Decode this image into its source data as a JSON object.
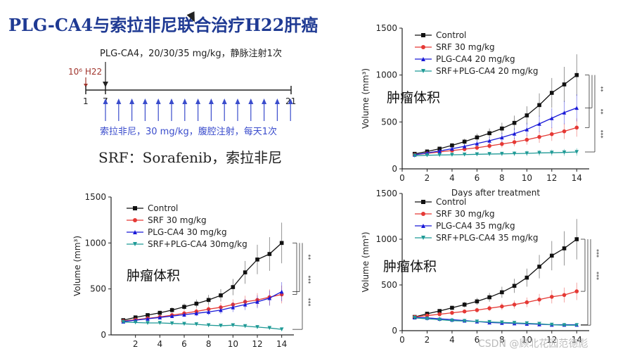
{
  "slide": {
    "title": "PLG-CA4与索拉非尼联合治疗H22肝癌",
    "protocol": {
      "plg_label": "PLG-CA4，20/30/35 mg/kg，静脉注射1次",
      "inoculation_label": "10⁶ H22",
      "day_start": "1",
      "day_treat": "7",
      "day_end": "21",
      "srf_label": "索拉非尼，30 mg/kg，腹腔注射，每天1次"
    },
    "srf_note": "SRF：Sorafenib，索拉非尼",
    "watermark": "CSDN @顾北花园范德彪"
  },
  "colors": {
    "control": "#111111",
    "srf": "#e53935",
    "plg": "#1a1ad8",
    "combo": "#1f9a96",
    "title": "#1f3a93",
    "arrow_red": "#a0342c",
    "arrow_blue": "#3a4ccc"
  },
  "chart_data": [
    {
      "type": "line",
      "title": "肿瘤体积",
      "xlabel": "Days after treatment",
      "ylabel": "Volume (mm³)",
      "xlim": [
        0,
        15
      ],
      "ylim": [
        0,
        1500
      ],
      "xticks": [
        0,
        2,
        4,
        6,
        8,
        10,
        12,
        14
      ],
      "yticks": [
        0,
        500,
        1000,
        1500
      ],
      "x": [
        1,
        2,
        3,
        4,
        5,
        6,
        7,
        8,
        9,
        10,
        11,
        12,
        13,
        14
      ],
      "series": [
        {
          "name": "Control",
          "color_key": "control",
          "marker": "square",
          "values": [
            160,
            185,
            215,
            250,
            290,
            335,
            380,
            430,
            490,
            570,
            680,
            810,
            900,
            1000
          ]
        },
        {
          "name": "SRF 30 mg/kg",
          "color_key": "srf",
          "marker": "circle",
          "values": [
            150,
            165,
            180,
            195,
            210,
            225,
            245,
            265,
            285,
            310,
            340,
            370,
            400,
            440
          ]
        },
        {
          "name": "PLG-CA4 20 mg/kg",
          "color_key": "plg",
          "marker": "triangle-up",
          "values": [
            150,
            170,
            190,
            215,
            240,
            270,
            300,
            335,
            375,
            420,
            480,
            540,
            600,
            650
          ]
        },
        {
          "name": "SRF+PLG-CA4 20 mg/kg",
          "color_key": "combo",
          "marker": "triangle-down",
          "values": [
            140,
            145,
            148,
            150,
            152,
            155,
            158,
            160,
            162,
            165,
            170,
            172,
            175,
            180
          ]
        }
      ],
      "significance": [
        "**",
        "**",
        "***"
      ]
    },
    {
      "type": "line",
      "title": "肿瘤体积",
      "xlabel": "",
      "ylabel": "Volume (mm³)",
      "xlim": [
        0,
        15
      ],
      "ylim": [
        0,
        1500
      ],
      "xticks": [
        2,
        4,
        6,
        8,
        10,
        12,
        14
      ],
      "yticks": [
        0,
        500,
        1000,
        1500
      ],
      "x": [
        1,
        2,
        3,
        4,
        5,
        6,
        7,
        8,
        9,
        10,
        11,
        12,
        13,
        14
      ],
      "series": [
        {
          "name": "Control",
          "color_key": "control",
          "marker": "square",
          "values": [
            160,
            190,
            215,
            240,
            270,
            305,
            340,
            380,
            430,
            520,
            680,
            820,
            880,
            1000
          ]
        },
        {
          "name": "SRF 30 mg/kg",
          "color_key": "srf",
          "marker": "circle",
          "values": [
            150,
            165,
            180,
            195,
            215,
            235,
            255,
            280,
            300,
            330,
            360,
            380,
            410,
            440
          ]
        },
        {
          "name": "PLG-CA4 30 mg/kg",
          "color_key": "plg",
          "marker": "triangle-up",
          "values": [
            145,
            160,
            175,
            190,
            205,
            220,
            235,
            250,
            270,
            300,
            330,
            360,
            400,
            470
          ]
        },
        {
          "name": "SRF+PLG-CA4 30mg/kg",
          "color_key": "combo",
          "marker": "triangle-down",
          "values": [
            140,
            135,
            130,
            130,
            125,
            120,
            115,
            105,
            100,
            105,
            95,
            85,
            75,
            60
          ]
        }
      ],
      "significance": [
        "**",
        "***",
        "***"
      ]
    },
    {
      "type": "line",
      "title": "肿瘤体积",
      "xlabel": "",
      "ylabel": "Volume (mm³)",
      "xlim": [
        0,
        15
      ],
      "ylim": [
        0,
        1500
      ],
      "xticks": [
        0,
        2,
        4,
        6,
        8,
        10,
        12,
        14
      ],
      "yticks": [
        0,
        500,
        1000,
        1500
      ],
      "x": [
        1,
        2,
        3,
        4,
        5,
        6,
        7,
        8,
        9,
        10,
        11,
        12,
        13,
        14
      ],
      "series": [
        {
          "name": "Control",
          "color_key": "control",
          "marker": "square",
          "values": [
            150,
            185,
            215,
            250,
            285,
            320,
            365,
            420,
            490,
            580,
            700,
            820,
            900,
            1000
          ]
        },
        {
          "name": "SRF 30 mg/kg",
          "color_key": "srf",
          "marker": "circle",
          "values": [
            150,
            165,
            180,
            195,
            210,
            225,
            245,
            265,
            285,
            310,
            340,
            370,
            390,
            430
          ]
        },
        {
          "name": "PLG-CA4 35 mg/kg",
          "color_key": "plg",
          "marker": "triangle-up",
          "values": [
            145,
            140,
            130,
            120,
            110,
            100,
            90,
            85,
            80,
            75,
            70,
            65,
            65,
            65
          ]
        },
        {
          "name": "SRF+PLG-CA4 35 mg/kg",
          "color_key": "combo",
          "marker": "triangle-down",
          "values": [
            140,
            130,
            120,
            110,
            105,
            100,
            95,
            90,
            85,
            80,
            75,
            65,
            60,
            60
          ]
        }
      ],
      "significance": [
        "***",
        "***"
      ]
    }
  ]
}
